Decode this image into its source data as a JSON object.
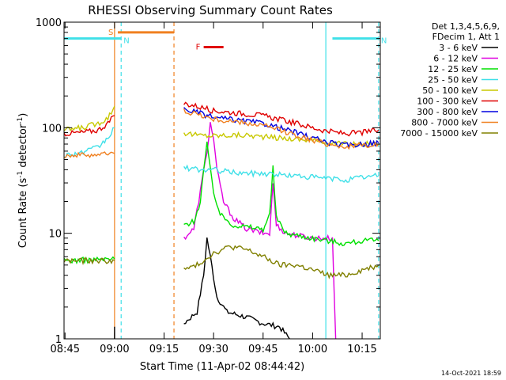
{
  "chart_data": {
    "type": "line",
    "title": "RHESSI Observing Summary Count Rates",
    "xlabel": "Start Time (11-Apr-02 08:44:42)",
    "ylabel_main": "Count Rate (s",
    "ylabel_sup1": "-1",
    "ylabel_mid": " detector",
    "ylabel_sup2": "-1",
    "ylabel_end": ")",
    "yscale": "log",
    "ylim": [
      1,
      1000
    ],
    "xlim": [
      "08:44:42",
      "10:20:30"
    ],
    "x_ticks": [
      "08:45",
      "09:00",
      "09:15",
      "09:30",
      "09:45",
      "10:00",
      "10:15"
    ],
    "y_ticks": [
      "1",
      "10",
      "100",
      "1000"
    ],
    "legend_header": [
      "Det 1,3,4,5,6,9,",
      "FDecim 1, Att 1"
    ],
    "legend_position": "right",
    "footer_date": "14-Oct-2021 18:59",
    "flags": [
      {
        "label": "S",
        "color": "#f08020",
        "start": "09:01",
        "end": "09:18",
        "level": 800
      },
      {
        "label": "N",
        "color": "#40e0e8",
        "start": "08:44:42",
        "end": "09:02",
        "level": 700
      },
      {
        "label": "N",
        "color": "#40e0e8",
        "start": "10:06",
        "end": "10:20",
        "level": 700
      },
      {
        "label": "F",
        "color": "#e00000",
        "start": "09:27",
        "end": "09:33",
        "level": 580
      }
    ],
    "vertical_markers": [
      {
        "time": "09:00",
        "color": "#f08020",
        "style": "solid"
      },
      {
        "time": "09:02",
        "color": "#40e0e8",
        "style": "dashed"
      },
      {
        "time": "09:18",
        "color": "#f08020",
        "style": "dashed"
      },
      {
        "time": "10:04",
        "color": "#40e0e8",
        "style": "solid"
      },
      {
        "time": "10:20",
        "color": "#40e0e8",
        "style": "dashed"
      }
    ],
    "series": [
      {
        "name": "3 - 6 keV",
        "color": "#000000",
        "segments": [
          [
            [
              "08:44:42",
              0
            ],
            [
              "09:00",
              1.0
            ],
            [
              "09:00",
              1.3
            ]
          ],
          [
            [
              "09:21",
              1.4
            ],
            [
              "09:25",
              1.8
            ],
            [
              "09:27",
              4.0
            ],
            [
              "09:28",
              9.0
            ],
            [
              "09:29",
              6.0
            ],
            [
              "09:31",
              2.5
            ],
            [
              "09:34",
              1.8
            ],
            [
              "09:40",
              1.6
            ],
            [
              "09:45",
              1.4
            ],
            [
              "09:50",
              1.3
            ],
            [
              "09:53",
              1.0
            ]
          ]
        ]
      },
      {
        "name": "6 - 12 keV",
        "color": "#e000e0",
        "segments": [
          [
            [
              "09:21",
              9
            ],
            [
              "09:24",
              11
            ],
            [
              "09:26",
              25
            ],
            [
              "09:28",
              60
            ],
            [
              "09:29",
              110
            ],
            [
              "09:30",
              80
            ],
            [
              "09:31",
              40
            ],
            [
              "09:33",
              20
            ],
            [
              "09:36",
              14
            ],
            [
              "09:40",
              11
            ],
            [
              "09:45",
              10
            ],
            [
              "09:47",
              10
            ],
            [
              "09:48",
              30
            ],
            [
              "09:49",
              12
            ],
            [
              "09:52",
              10
            ],
            [
              "10:00",
              9
            ],
            [
              "10:06",
              9
            ],
            [
              "10:07",
              1
            ]
          ]
        ]
      },
      {
        "name": "12 - 25 keV",
        "color": "#00e000",
        "segments": [
          [
            [
              "08:44:42",
              5.5
            ],
            [
              "09:00",
              5.7
            ]
          ],
          [
            [
              "09:21",
              12
            ],
            [
              "09:24",
              13
            ],
            [
              "09:26",
              20
            ],
            [
              "09:27",
              40
            ],
            [
              "09:28",
              70
            ],
            [
              "09:29",
              40
            ],
            [
              "09:30",
              25
            ],
            [
              "09:32",
              15
            ],
            [
              "09:36",
              12
            ],
            [
              "09:45",
              11
            ],
            [
              "09:47",
              15
            ],
            [
              "09:48",
              42
            ],
            [
              "09:49",
              14
            ],
            [
              "09:52",
              10
            ],
            [
              "10:00",
              9
            ],
            [
              "10:10",
              8
            ],
            [
              "10:15",
              8.5
            ],
            [
              "10:20",
              8.5
            ]
          ]
        ]
      },
      {
        "name": "25 - 50 keV",
        "color": "#40e0e8",
        "segments": [
          [
            [
              "08:44:42",
              55
            ],
            [
              "08:50",
              58
            ],
            [
              "08:55",
              65
            ],
            [
              "08:58",
              80
            ],
            [
              "09:00",
              100
            ]
          ],
          [
            [
              "09:21",
              42
            ],
            [
              "09:25",
              40
            ],
            [
              "09:30",
              40
            ],
            [
              "09:35",
              38
            ],
            [
              "09:40",
              37
            ],
            [
              "09:45",
              37
            ],
            [
              "09:50",
              36
            ],
            [
              "09:55",
              35
            ],
            [
              "10:00",
              34
            ],
            [
              "10:05",
              33
            ],
            [
              "10:10",
              32
            ],
            [
              "10:15",
              34
            ],
            [
              "10:20",
              35
            ]
          ]
        ]
      },
      {
        "name": "50 - 100 keV",
        "color": "#c8c800",
        "segments": [
          [
            [
              "08:44:42",
              95
            ],
            [
              "08:50",
              100
            ],
            [
              "08:55",
              110
            ],
            [
              "08:58",
              125
            ],
            [
              "09:00",
              160
            ]
          ],
          [
            [
              "09:21",
              90
            ],
            [
              "09:25",
              85
            ],
            [
              "09:30",
              84
            ],
            [
              "09:35",
              85
            ],
            [
              "09:40",
              85
            ],
            [
              "09:45",
              82
            ],
            [
              "09:50",
              80
            ],
            [
              "09:55",
              78
            ],
            [
              "10:00",
              76
            ],
            [
              "10:05",
              72
            ],
            [
              "10:10",
              70
            ],
            [
              "10:15",
              70
            ],
            [
              "10:20",
              72
            ]
          ]
        ]
      },
      {
        "name": "100 - 300 keV",
        "color": "#e00000",
        "segments": [
          [
            [
              "08:44:42",
              88
            ],
            [
              "08:50",
              90
            ],
            [
              "08:55",
              95
            ],
            [
              "08:58",
              110
            ],
            [
              "09:00",
              130
            ]
          ],
          [
            [
              "09:21",
              170
            ],
            [
              "09:25",
              160
            ],
            [
              "09:30",
              145
            ],
            [
              "09:35",
              140
            ],
            [
              "09:40",
              135
            ],
            [
              "09:45",
              130
            ],
            [
              "09:50",
              120
            ],
            [
              "09:55",
              110
            ],
            [
              "10:00",
              100
            ],
            [
              "10:05",
              92
            ],
            [
              "10:10",
              88
            ],
            [
              "10:15",
              90
            ],
            [
              "10:20",
              95
            ]
          ]
        ]
      },
      {
        "name": "300 - 800 keV",
        "color": "#0000e0",
        "segments": [
          [
            [
              "09:21",
              150
            ],
            [
              "09:25",
              140
            ],
            [
              "09:30",
              125
            ],
            [
              "09:35",
              120
            ],
            [
              "09:40",
              115
            ],
            [
              "09:45",
              110
            ],
            [
              "09:50",
              100
            ],
            [
              "09:55",
              90
            ],
            [
              "10:00",
              80
            ],
            [
              "10:05",
              72
            ],
            [
              "10:10",
              68
            ],
            [
              "10:15",
              70
            ],
            [
              "10:20",
              72
            ]
          ]
        ]
      },
      {
        "name": "800 - 7000 keV",
        "color": "#f08020",
        "segments": [
          [
            [
              "08:44:42",
              55
            ],
            [
              "08:50",
              55
            ],
            [
              "08:55",
              56
            ],
            [
              "09:00",
              57
            ]
          ],
          [
            [
              "09:21",
              145
            ],
            [
              "09:25",
              135
            ],
            [
              "09:30",
              120
            ],
            [
              "09:35",
              115
            ],
            [
              "09:40",
              110
            ],
            [
              "09:45",
              105
            ],
            [
              "09:50",
              95
            ],
            [
              "09:55",
              85
            ],
            [
              "10:00",
              76
            ],
            [
              "10:05",
              70
            ],
            [
              "10:10",
              66
            ],
            [
              "10:15",
              68
            ],
            [
              "10:20",
              70
            ]
          ]
        ]
      },
      {
        "name": "7000 - 15000 keV",
        "color": "#808000",
        "segments": [
          [
            [
              "08:44:42",
              5.5
            ],
            [
              "09:00",
              5.5
            ]
          ],
          [
            [
              "09:21",
              4.5
            ],
            [
              "09:25",
              5
            ],
            [
              "09:30",
              6.5
            ],
            [
              "09:35",
              7.5
            ],
            [
              "09:40",
              7
            ],
            [
              "09:45",
              6
            ],
            [
              "09:50",
              5
            ],
            [
              "09:55",
              5
            ],
            [
              "10:00",
              4.5
            ],
            [
              "10:05",
              4
            ],
            [
              "10:10",
              4
            ],
            [
              "10:15",
              4.5
            ],
            [
              "10:20",
              5
            ]
          ]
        ]
      }
    ]
  }
}
